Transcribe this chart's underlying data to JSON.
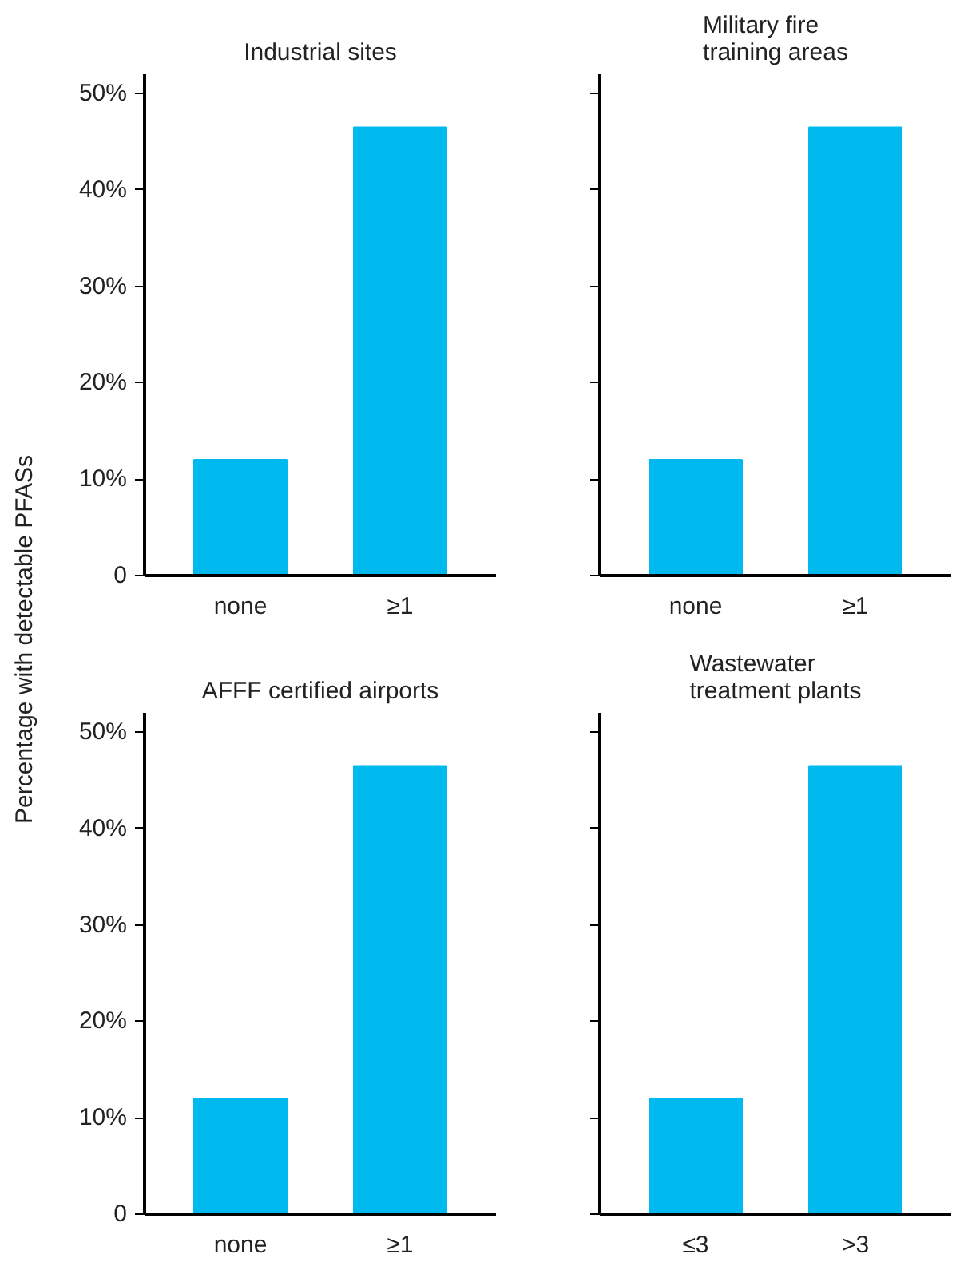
{
  "chart_data": [
    {
      "type": "bar",
      "title": "Industrial sites",
      "ylabel": "Percentage with detectable PFASs",
      "categories": [
        "none",
        "≥1"
      ],
      "values": [
        12.0,
        46.5
      ],
      "color": "#00b9ef",
      "ylim": [
        0,
        52
      ],
      "yticks": [
        {
          "value": 0,
          "label": "0"
        },
        {
          "value": 10,
          "label": "10%"
        },
        {
          "value": 20,
          "label": "20%"
        },
        {
          "value": 30,
          "label": "30%"
        },
        {
          "value": 40,
          "label": "40%"
        },
        {
          "value": 50,
          "label": "50%"
        }
      ],
      "grid": false
    },
    {
      "type": "bar",
      "title": "Military fire\ntraining areas",
      "categories": [
        "none",
        "≥1"
      ],
      "values": [
        12.0,
        46.5
      ],
      "color": "#00b9ef",
      "ylim": [
        0,
        52
      ],
      "yticks": [
        {
          "value": 0,
          "label": null
        },
        {
          "value": 10,
          "label": null
        },
        {
          "value": 20,
          "label": null
        },
        {
          "value": 30,
          "label": null
        },
        {
          "value": 40,
          "label": null
        },
        {
          "value": 50,
          "label": null
        }
      ],
      "grid": false,
      "tick_labels": "x"
    },
    {
      "type": "bar",
      "title": "AFFF certified airports",
      "categories": [
        "none",
        "≥1"
      ],
      "values": [
        12.0,
        46.5
      ],
      "color": "#00b9ef",
      "ylim": [
        0,
        52
      ],
      "yticks": [
        {
          "value": 0,
          "label": "0"
        },
        {
          "value": 10,
          "label": "10%"
        },
        {
          "value": 20,
          "label": "20%"
        },
        {
          "value": 30,
          "label": "30%"
        },
        {
          "value": 40,
          "label": "40%"
        },
        {
          "value": 50,
          "label": "50%"
        }
      ],
      "grid": false
    },
    {
      "type": "bar",
      "title": "Wastewater\ntreatment plants",
      "categories": [
        "≤3",
        ">3"
      ],
      "values": [
        12.0,
        46.5
      ],
      "color": "#00b9ef",
      "ylim": [
        0,
        52
      ],
      "yticks": [
        {
          "value": 0,
          "label": null
        },
        {
          "value": 10,
          "label": null
        },
        {
          "value": 20,
          "label": null
        },
        {
          "value": 30,
          "label": null
        },
        {
          "value": 40,
          "label": null
        },
        {
          "value": 50,
          "label": null
        }
      ],
      "grid": false,
      "tick_labels": "x"
    }
  ]
}
